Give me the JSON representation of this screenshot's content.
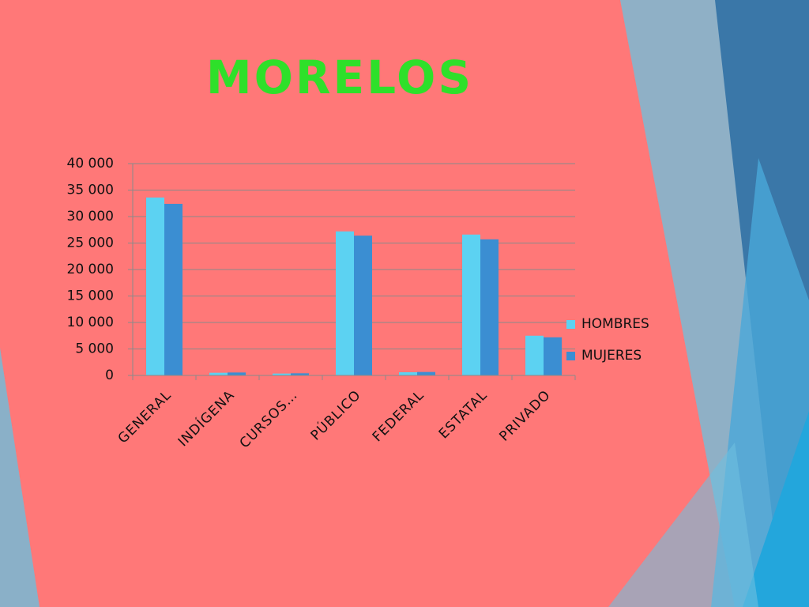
{
  "chart_data": {
    "type": "bar",
    "title": "MORELOS",
    "categories": [
      "GENERAL",
      "INDÍGENA",
      "CURSOS…",
      "PÚBLICO",
      "FEDERAL",
      "ESTATAL",
      "PRIVADO"
    ],
    "series": [
      {
        "name": "HOMBRES",
        "color": "#5cd2f2",
        "values": [
          33600,
          500,
          350,
          27200,
          600,
          26600,
          7500
        ]
      },
      {
        "name": "MUJERES",
        "color": "#3b8ed2",
        "values": [
          32400,
          550,
          400,
          26400,
          650,
          25700,
          7200
        ]
      }
    ],
    "ylim": [
      0,
      40000
    ],
    "yticks": [
      0,
      {
        "value": 5000,
        "label": "5 000"
      },
      {
        "value": 10000,
        "label": "10 000"
      },
      {
        "value": 15000,
        "label": "15 000"
      },
      {
        "value": 20000,
        "label": "20 000"
      },
      {
        "value": 25000,
        "label": "25 000"
      },
      {
        "value": 30000,
        "label": "30 000"
      },
      {
        "value": 35000,
        "label": "35 000"
      },
      {
        "value": 40000,
        "label": "40 000"
      }
    ],
    "grid": true,
    "legend": "right"
  }
}
